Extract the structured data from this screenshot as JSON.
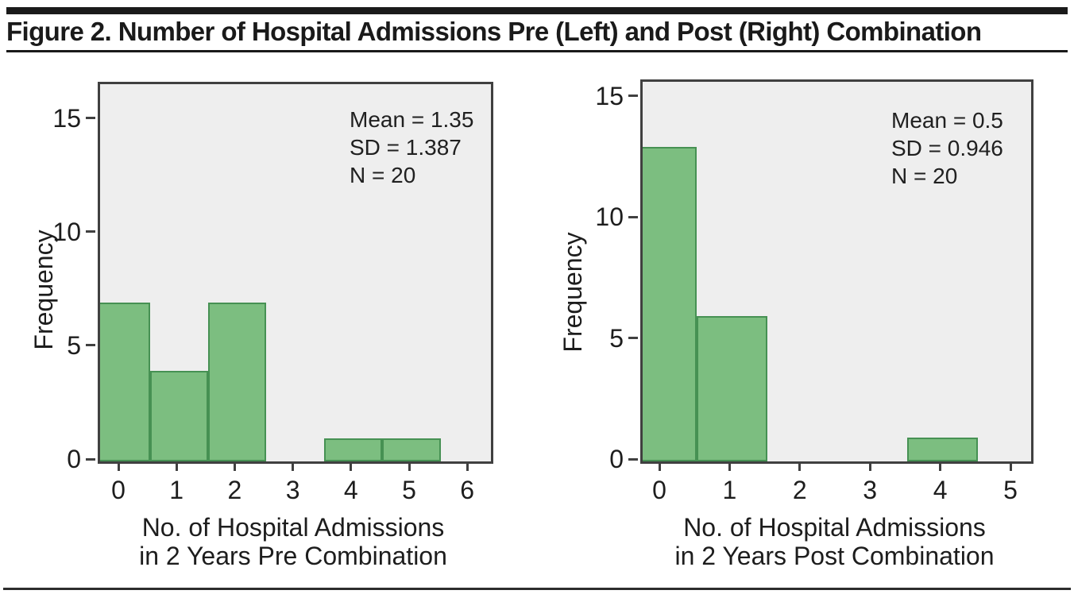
{
  "figure": {
    "title": "Figure 2. Number of Hospital Admissions Pre (Left) and Post (Right) Combination"
  },
  "colors": {
    "bar_fill": "#7cbe80",
    "bar_border": "#469153",
    "plot_background": "#eeeeee",
    "plot_border": "#404040",
    "text": "#1d1d1d",
    "header_bar": "#1a1a1a"
  },
  "chart_data": [
    {
      "type": "bar",
      "subtype": "histogram",
      "position": "left",
      "x_values": [
        0,
        1,
        2,
        3,
        4,
        5
      ],
      "frequencies": [
        7,
        4,
        7,
        0,
        1,
        1
      ],
      "bin_width": 1,
      "x_ticks": [
        "0",
        "1",
        "2",
        "3",
        "4",
        "5",
        "6"
      ],
      "y_ticks": [
        "0",
        "5",
        "10",
        "15"
      ],
      "xlim": [
        -0.36,
        6.37
      ],
      "ylim": [
        0,
        16.6
      ],
      "xlabel_lines": [
        "No. of Hospital Admissions",
        "in 2 Years Pre Combination"
      ],
      "ylabel": "Frequency",
      "annotation_lines": [
        "Mean = 1.35",
        "SD = 1.387",
        "N = 20"
      ],
      "grid": false,
      "legend": "none"
    },
    {
      "type": "bar",
      "subtype": "histogram",
      "position": "right",
      "x_values": [
        0,
        1,
        2,
        3,
        4
      ],
      "frequencies": [
        13,
        6,
        0,
        0,
        1
      ],
      "bin_width": 1,
      "x_ticks": [
        "0",
        "1",
        "2",
        "3",
        "4",
        "5"
      ],
      "y_ticks": [
        "0",
        "5",
        "10",
        "15"
      ],
      "xlim": [
        -0.27,
        5.26
      ],
      "ylim": [
        0,
        15.7
      ],
      "xlabel_lines": [
        "No. of Hospital Admissions",
        "in 2 Years Post Combination"
      ],
      "ylabel": "Frequency",
      "annotation_lines": [
        "Mean = 0.5",
        "SD = 0.946",
        "N = 20"
      ],
      "grid": false,
      "legend": "none"
    }
  ]
}
